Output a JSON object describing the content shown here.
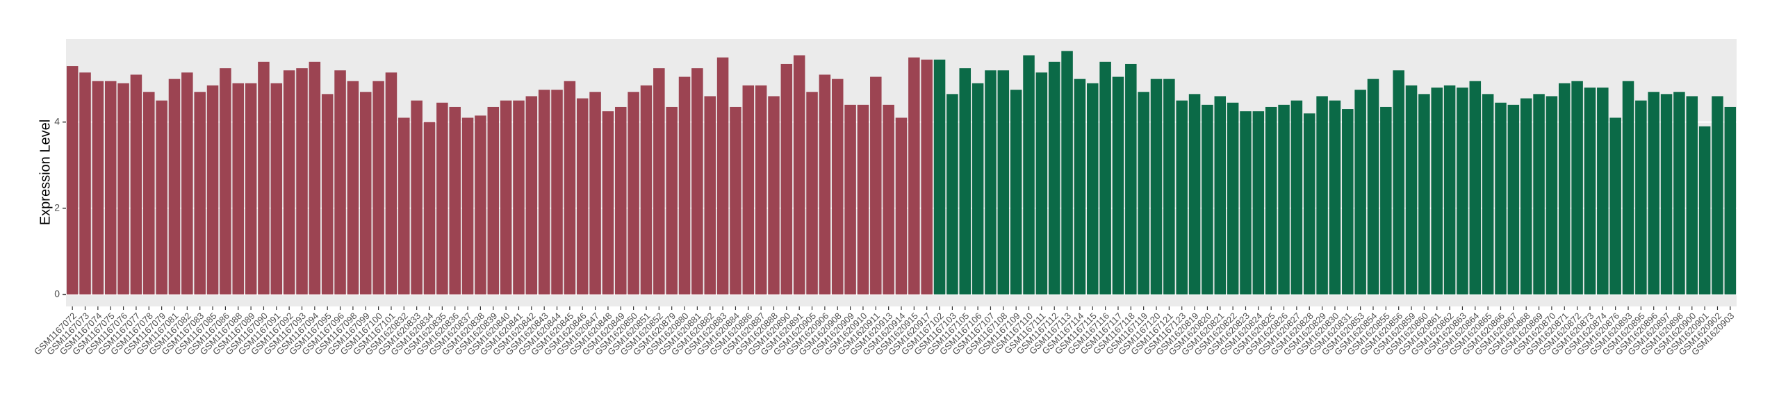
{
  "chart_data": {
    "type": "bar",
    "y_label": "Expression Level",
    "categories": [
      "GSM1167072",
      "GSM1167073",
      "GSM1167074",
      "GSM1167075",
      "GSM1167076",
      "GSM1167077",
      "GSM1167078",
      "GSM1167079",
      "GSM1167081",
      "GSM1167082",
      "GSM1167083",
      "GSM1167085",
      "GSM1167086",
      "GSM1167088",
      "GSM1167089",
      "GSM1167090",
      "GSM1167091",
      "GSM1167092",
      "GSM1167093",
      "GSM1167094",
      "GSM1167095",
      "GSM1167096",
      "GSM1167098",
      "GSM1167099",
      "GSM1167100",
      "GSM1167101",
      "GSM1620832",
      "GSM1620833",
      "GSM1620834",
      "GSM1620835",
      "GSM1620836",
      "GSM1620837",
      "GSM1620838",
      "GSM1620839",
      "GSM1620840",
      "GSM1620841",
      "GSM1620842",
      "GSM1620843",
      "GSM1620844",
      "GSM1620845",
      "GSM1620846",
      "GSM1620847",
      "GSM1620848",
      "GSM1620849",
      "GSM1620850",
      "GSM1620851",
      "GSM1620852",
      "GSM1620879",
      "GSM1620880",
      "GSM1620881",
      "GSM1620882",
      "GSM1620883",
      "GSM1620884",
      "GSM1620886",
      "GSM1620887",
      "GSM1620888",
      "GSM1620890",
      "GSM1620891",
      "GSM1620905",
      "GSM1620906",
      "GSM1620908",
      "GSM1620909",
      "GSM1620910",
      "GSM1620911",
      "GSM1620913",
      "GSM1620914",
      "GSM1620915",
      "GSM1620917",
      "GSM1167102",
      "GSM1167103",
      "GSM1167105",
      "GSM1167106",
      "GSM1167107",
      "GSM1167108",
      "GSM1167109",
      "GSM1167110",
      "GSM1167111",
      "GSM1167112",
      "GSM1167113",
      "GSM1167114",
      "GSM1167115",
      "GSM1167116",
      "GSM1167117",
      "GSM1167118",
      "GSM1167119",
      "GSM1167120",
      "GSM1167121",
      "GSM1167123",
      "GSM1620819",
      "GSM1620820",
      "GSM1620821",
      "GSM1620822",
      "GSM1620823",
      "GSM1620824",
      "GSM1620825",
      "GSM1620826",
      "GSM1620827",
      "GSM1620828",
      "GSM1620829",
      "GSM1620830",
      "GSM1620831",
      "GSM1620853",
      "GSM1620854",
      "GSM1620855",
      "GSM1620856",
      "GSM1620859",
      "GSM1620860",
      "GSM1620861",
      "GSM1620862",
      "GSM1620863",
      "GSM1620864",
      "GSM1620865",
      "GSM1620866",
      "GSM1620867",
      "GSM1620868",
      "GSM1620869",
      "GSM1620870",
      "GSM1620871",
      "GSM1620872",
      "GSM1620873",
      "GSM1620874",
      "GSM1620876",
      "GSM1620893",
      "GSM1620895",
      "GSM1620896",
      "GSM1620897",
      "GSM1620898",
      "GSM1620900",
      "GSM1620901",
      "GSM1620902",
      "GSM1620903"
    ],
    "values": [
      5.3,
      5.15,
      4.95,
      4.95,
      4.9,
      5.1,
      4.7,
      4.5,
      5.0,
      5.15,
      4.7,
      4.85,
      5.25,
      4.9,
      4.9,
      5.4,
      4.9,
      5.2,
      5.25,
      5.4,
      4.65,
      5.2,
      4.95,
      4.7,
      4.95,
      5.15,
      4.1,
      4.5,
      4.0,
      4.45,
      4.35,
      4.1,
      4.15,
      4.35,
      4.5,
      4.5,
      4.6,
      4.75,
      4.75,
      4.95,
      4.55,
      4.7,
      4.25,
      4.35,
      4.7,
      4.85,
      5.25,
      4.35,
      5.05,
      5.25,
      4.6,
      5.5,
      4.35,
      4.85,
      4.85,
      4.6,
      5.35,
      5.55,
      4.7,
      5.1,
      5.0,
      4.4,
      4.4,
      5.05,
      4.4,
      4.1,
      5.5,
      5.45,
      5.45,
      4.65,
      5.25,
      4.9,
      5.2,
      5.2,
      4.75,
      5.55,
      5.15,
      5.4,
      5.65,
      5.0,
      4.9,
      5.4,
      5.05,
      5.35,
      4.7,
      5.0,
      5.0,
      4.5,
      4.65,
      4.4,
      4.6,
      4.45,
      4.25,
      4.25,
      4.35,
      4.4,
      4.5,
      4.2,
      4.6,
      4.5,
      4.3,
      4.75,
      5.0,
      4.35,
      5.2,
      4.85,
      4.65,
      4.8,
      4.85,
      4.8,
      4.95,
      4.65,
      4.45,
      4.4,
      4.55,
      4.65,
      4.6,
      4.9,
      4.95,
      4.8,
      4.8,
      4.1,
      4.95,
      4.5,
      4.7,
      4.65,
      4.7,
      4.6,
      3.9,
      4.6,
      4.35
    ],
    "colors": [
      "#9c4452",
      "#9c4452",
      "#9c4452",
      "#9c4452",
      "#9c4452",
      "#9c4452",
      "#9c4452",
      "#9c4452",
      "#9c4452",
      "#9c4452",
      "#9c4452",
      "#9c4452",
      "#9c4452",
      "#9c4452",
      "#9c4452",
      "#9c4452",
      "#9c4452",
      "#9c4452",
      "#9c4452",
      "#9c4452",
      "#9c4452",
      "#9c4452",
      "#9c4452",
      "#9c4452",
      "#9c4452",
      "#9c4452",
      "#9c4452",
      "#9c4452",
      "#9c4452",
      "#9c4452",
      "#9c4452",
      "#9c4452",
      "#9c4452",
      "#9c4452",
      "#9c4452",
      "#9c4452",
      "#9c4452",
      "#9c4452",
      "#9c4452",
      "#9c4452",
      "#9c4452",
      "#9c4452",
      "#9c4452",
      "#9c4452",
      "#9c4452",
      "#9c4452",
      "#9c4452",
      "#9c4452",
      "#9c4452",
      "#9c4452",
      "#9c4452",
      "#9c4452",
      "#9c4452",
      "#9c4452",
      "#9c4452",
      "#9c4452",
      "#9c4452",
      "#9c4452",
      "#9c4452",
      "#9c4452",
      "#9c4452",
      "#9c4452",
      "#9c4452",
      "#9c4452",
      "#9c4452",
      "#9c4452",
      "#9c4452",
      "#9c4452",
      "#0b6a47",
      "#0b6a47",
      "#0b6a47",
      "#0b6a47",
      "#0b6a47",
      "#0b6a47",
      "#0b6a47",
      "#0b6a47",
      "#0b6a47",
      "#0b6a47",
      "#0b6a47",
      "#0b6a47",
      "#0b6a47",
      "#0b6a47",
      "#0b6a47",
      "#0b6a47",
      "#0b6a47",
      "#0b6a47",
      "#0b6a47",
      "#0b6a47",
      "#0b6a47",
      "#0b6a47",
      "#0b6a47",
      "#0b6a47",
      "#0b6a47",
      "#0b6a47",
      "#0b6a47",
      "#0b6a47",
      "#0b6a47",
      "#0b6a47",
      "#0b6a47",
      "#0b6a47",
      "#0b6a47",
      "#0b6a47",
      "#0b6a47",
      "#0b6a47",
      "#0b6a47",
      "#0b6a47",
      "#0b6a47",
      "#0b6a47",
      "#0b6a47",
      "#0b6a47",
      "#0b6a47",
      "#0b6a47",
      "#0b6a47",
      "#0b6a47",
      "#0b6a47",
      "#0b6a47",
      "#0b6a47",
      "#0b6a47",
      "#0b6a47",
      "#0b6a47",
      "#0b6a47",
      "#0b6a47",
      "#0b6a47",
      "#0b6a47",
      "#0b6a47",
      "#0b6a47",
      "#0b6a47",
      "#0b6a47",
      "#0b6a47",
      "#0b6a47",
      "#0b6a47"
    ],
    "ylim": [
      -0.28,
      5.93
    ],
    "yticks": [
      0,
      2,
      4
    ],
    "grid": true
  }
}
